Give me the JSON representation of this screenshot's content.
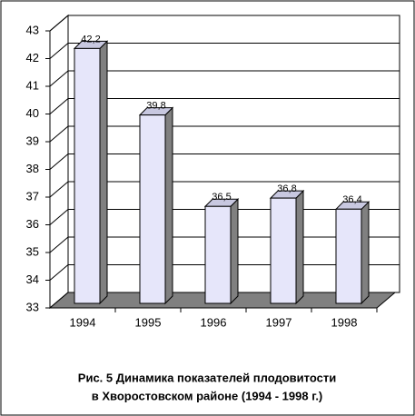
{
  "chart_data": {
    "type": "bar3d",
    "title": [
      "Рис. 5 Динамика показателей плодовитости",
      "в Хворостовском районе (1994 - 1998 г.)"
    ],
    "categories": [
      "1994",
      "1995",
      "1996",
      "1997",
      "1998"
    ],
    "values": [
      42.2,
      39.8,
      36.5,
      36.8,
      36.4
    ],
    "value_labels": [
      "42,2",
      "39,8",
      "36,5",
      "36,8",
      "36,4"
    ],
    "color": "#e6e6fa",
    "ylim": [
      33,
      43
    ],
    "yticks": [
      33,
      34,
      35,
      36,
      37,
      38,
      39,
      40,
      41,
      42,
      43
    ],
    "grid": true
  }
}
